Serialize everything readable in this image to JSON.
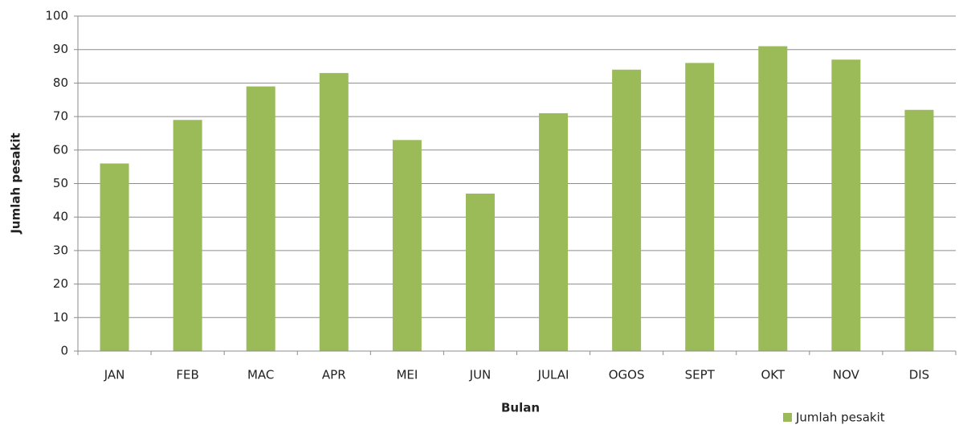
{
  "chart_data": {
    "type": "bar",
    "x_label": "Bulan",
    "y_label": "Jumlah pesakit",
    "categories": [
      "JAN",
      "FEB",
      "MAC",
      "APR",
      "MEI",
      "JUN",
      "JULAI",
      "OGOS",
      "SEPT",
      "OKT",
      "NOV",
      "DIS"
    ],
    "series": [
      {
        "name": "Jumlah pesakit",
        "color": "#9bbb59",
        "values": [
          56,
          69,
          79,
          83,
          63,
          47,
          71,
          84,
          86,
          91,
          87,
          72
        ]
      }
    ],
    "ylim": [
      0,
      100
    ],
    "yticks": [
      0,
      10,
      20,
      30,
      40,
      50,
      60,
      70,
      80,
      90,
      100
    ],
    "grid": true,
    "legend": "bottom-right"
  }
}
